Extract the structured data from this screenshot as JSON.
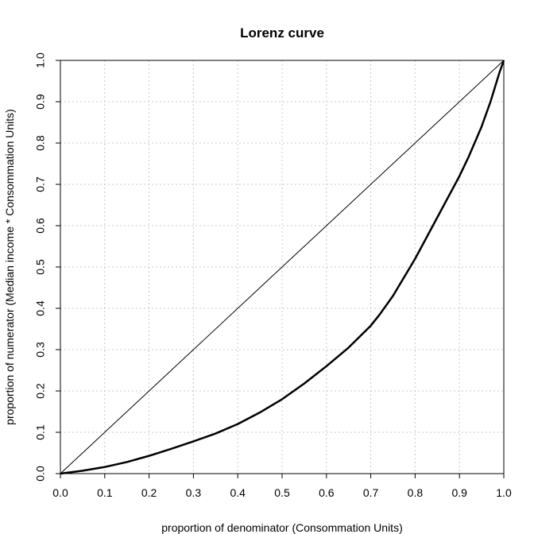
{
  "chart_data": {
    "type": "line",
    "title": "Lorenz curve",
    "xlabel": "proportion of denominator (Consommation Units)",
    "ylabel": "proportion of numerator (Median income * Consommation Units)",
    "xlim": [
      0,
      1
    ],
    "ylim": [
      0,
      1
    ],
    "xticks": [
      "0.0",
      "0.1",
      "0.2",
      "0.3",
      "0.4",
      "0.5",
      "0.6",
      "0.7",
      "0.8",
      "0.9",
      "1.0"
    ],
    "yticks": [
      "0.0",
      "0.1",
      "0.2",
      "0.3",
      "0.4",
      "0.5",
      "0.6",
      "0.7",
      "0.8",
      "0.9",
      "1.0"
    ],
    "grid": true,
    "series": [
      {
        "x": [
          0,
          0.05,
          0.1,
          0.15,
          0.2,
          0.25,
          0.3,
          0.35,
          0.4,
          0.45,
          0.5,
          0.55,
          0.6,
          0.65,
          0.7,
          0.72,
          0.75,
          0.8,
          0.85,
          0.9,
          0.92,
          0.95,
          0.97,
          0.99,
          1.0
        ],
        "y": [
          0,
          0.007,
          0.016,
          0.028,
          0.043,
          0.06,
          0.078,
          0.097,
          0.12,
          0.148,
          0.18,
          0.218,
          0.26,
          0.305,
          0.358,
          0.385,
          0.43,
          0.52,
          0.62,
          0.72,
          0.765,
          0.84,
          0.9,
          0.97,
          1.0
        ]
      },
      {
        "x": [
          0,
          1
        ],
        "y": [
          0,
          1
        ]
      }
    ]
  }
}
